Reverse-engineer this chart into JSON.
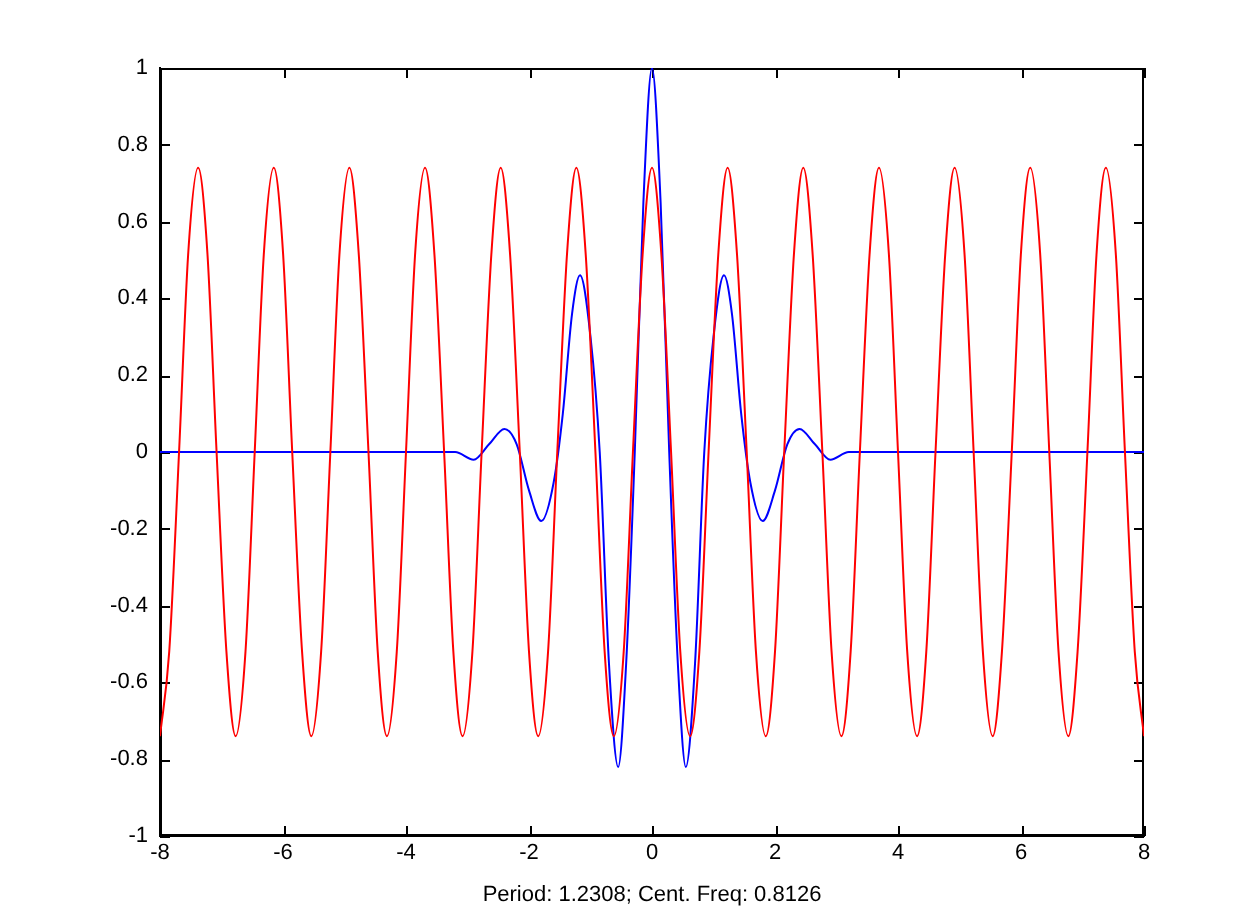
{
  "chart_data": {
    "type": "line",
    "xlabel": "Period: 1.2308; Cent. Freq: 0.8126",
    "xlim": [
      -8,
      8
    ],
    "xticks": [
      -8,
      -6,
      -4,
      -2,
      0,
      2,
      4,
      6,
      8
    ],
    "ylim": [
      -1,
      1
    ],
    "yticks": [
      -1,
      -0.8,
      -0.6,
      -0.4,
      -0.2,
      0,
      0.2,
      0.4,
      0.6,
      0.8,
      1
    ],
    "grid": false,
    "legend": false,
    "marker": "none",
    "line_style": "solid",
    "series": [
      {
        "color": "#ff0000",
        "x": [
          -8.0,
          -7.85,
          -7.69,
          -7.54,
          -7.38,
          -7.23,
          -7.08,
          -6.92,
          -6.77,
          -6.61,
          -6.46,
          -6.31,
          -6.15,
          -6.0,
          -5.85,
          -5.69,
          -5.54,
          -5.38,
          -5.23,
          -5.08,
          -4.92,
          -4.77,
          -4.61,
          -4.46,
          -4.31,
          -4.15,
          -4.0,
          -3.85,
          -3.69,
          -3.54,
          -3.38,
          -3.23,
          -3.08,
          -2.92,
          -2.77,
          -2.61,
          -2.46,
          -2.31,
          -2.15,
          -2.0,
          -1.85,
          -1.69,
          -1.54,
          -1.38,
          -1.23,
          -1.08,
          -0.92,
          -0.77,
          -0.62,
          -0.46,
          -0.31,
          -0.15,
          0,
          0.15,
          0.31,
          0.46,
          0.62,
          0.77,
          0.92,
          1.08,
          1.23,
          1.38,
          1.54,
          1.69,
          1.85,
          2.0,
          2.15,
          2.31,
          2.46,
          2.61,
          2.77,
          2.92,
          3.08,
          3.23,
          3.38,
          3.54,
          3.69,
          3.85,
          4.0,
          4.15,
          4.31,
          4.46,
          4.61,
          4.77,
          4.92,
          5.08,
          5.23,
          5.38,
          5.54,
          5.69,
          5.85,
          6.0,
          6.15,
          6.31,
          6.46,
          6.61,
          6.77,
          6.92,
          7.08,
          7.23,
          7.38,
          7.54,
          7.69,
          7.85,
          8.0
        ],
        "values": [
          -0.74,
          -0.52,
          0,
          0.52,
          0.74,
          0.52,
          0,
          -0.52,
          -0.74,
          -0.52,
          0,
          0.52,
          0.74,
          0.52,
          0,
          -0.52,
          -0.74,
          -0.52,
          0,
          0.52,
          0.74,
          0.52,
          0,
          -0.52,
          -0.74,
          -0.52,
          0,
          0.52,
          0.74,
          0.52,
          0,
          -0.52,
          -0.74,
          -0.52,
          0,
          0.52,
          0.74,
          0.52,
          0,
          -0.52,
          -0.74,
          -0.52,
          0,
          0.52,
          0.74,
          0.52,
          0,
          -0.52,
          -0.74,
          -0.52,
          0,
          0.52,
          0.74,
          0.52,
          0,
          -0.52,
          -0.74,
          -0.52,
          0,
          0.52,
          0.74,
          0.52,
          0,
          -0.52,
          -0.74,
          -0.52,
          0,
          0.52,
          0.74,
          0.52,
          0,
          -0.52,
          -0.74,
          -0.52,
          0,
          0.52,
          0.74,
          0.52,
          0,
          -0.52,
          -0.74,
          -0.52,
          0,
          0.52,
          0.74,
          0.52,
          0,
          -0.52,
          -0.74,
          -0.52,
          0,
          0.52,
          0.74,
          0.52,
          0,
          -0.52,
          -0.74,
          -0.52,
          0,
          0.52,
          0.74,
          0.52,
          0,
          -0.52,
          -0.74
        ]
      },
      {
        "color": "#0000ff",
        "x": [
          -8,
          -3.2,
          -2.9,
          -2.65,
          -2.4,
          -2.2,
          -2.0,
          -1.8,
          -1.6,
          -1.45,
          -1.3,
          -1.17,
          -1.0,
          -0.85,
          -0.7,
          -0.55,
          -0.42,
          -0.28,
          -0.14,
          0,
          0.14,
          0.28,
          0.42,
          0.55,
          0.7,
          0.85,
          1.0,
          1.17,
          1.3,
          1.45,
          1.6,
          1.8,
          2.0,
          2.2,
          2.4,
          2.65,
          2.9,
          3.2,
          8
        ],
        "values": [
          0,
          0,
          -0.02,
          0.02,
          0.06,
          0.02,
          -0.1,
          -0.18,
          -0.08,
          0.1,
          0.36,
          0.46,
          0.3,
          0,
          -0.55,
          -0.82,
          -0.55,
          0,
          0.65,
          1,
          0.65,
          0,
          -0.55,
          -0.82,
          -0.55,
          0,
          0.3,
          0.46,
          0.36,
          0.1,
          -0.08,
          -0.18,
          -0.1,
          0.02,
          0.06,
          0.02,
          -0.02,
          0,
          0
        ]
      }
    ]
  }
}
